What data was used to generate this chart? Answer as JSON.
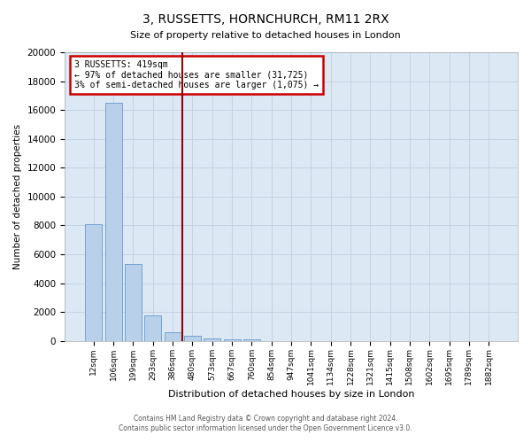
{
  "title": "3, RUSSETTS, HORNCHURCH, RM11 2RX",
  "subtitle": "Size of property relative to detached houses in London",
  "xlabel": "Distribution of detached houses by size in London",
  "ylabel": "Number of detached properties",
  "categories": [
    "12sqm",
    "106sqm",
    "199sqm",
    "293sqm",
    "386sqm",
    "480sqm",
    "573sqm",
    "667sqm",
    "760sqm",
    "854sqm",
    "947sqm",
    "1041sqm",
    "1134sqm",
    "1228sqm",
    "1321sqm",
    "1415sqm",
    "1508sqm",
    "1602sqm",
    "1695sqm",
    "1789sqm",
    "1882sqm"
  ],
  "values": [
    8100,
    16500,
    5300,
    1750,
    620,
    330,
    190,
    130,
    100,
    0,
    0,
    0,
    0,
    0,
    0,
    0,
    0,
    0,
    0,
    0,
    0
  ],
  "bar_color": "#b8d0ea",
  "bar_edge_color": "#6699cc",
  "vline_x": 4.5,
  "vline_color": "#990000",
  "annotation_box_text": "3 RUSSETTS: 419sqm\n← 97% of detached houses are smaller (31,725)\n3% of semi-detached houses are larger (1,075) →",
  "annotation_box_color": "#ffffff",
  "annotation_box_edge_color": "#cc0000",
  "ylim": [
    0,
    20000
  ],
  "yticks": [
    0,
    2000,
    4000,
    6000,
    8000,
    10000,
    12000,
    14000,
    16000,
    18000,
    20000
  ],
  "grid_color": "#c0d0e0",
  "plot_bg_color": "#dde8f5",
  "fig_bg_color": "#ffffff",
  "footer_line1": "Contains HM Land Registry data © Crown copyright and database right 2024.",
  "footer_line2": "Contains public sector information licensed under the Open Government Licence v3.0."
}
